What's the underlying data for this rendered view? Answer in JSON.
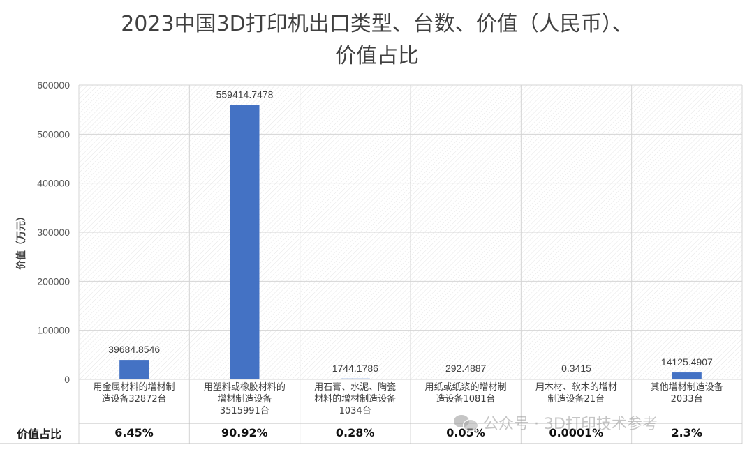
{
  "chart_data": {
    "type": "bar",
    "title": "2023中国3D打印机出口类型、台数、价值（人民币）、价值占比",
    "title_lines": [
      "2023中国3D打印机出口类型、台数、价值（人民币）、",
      "价值占比"
    ],
    "ylabel": "价值（万元）",
    "ylim": [
      0,
      600000
    ],
    "yticks": [
      "0",
      "100000",
      "200000",
      "300000",
      "400000",
      "500000",
      "600000"
    ],
    "grid": true,
    "bar_color": "#4472C4",
    "categories": [
      [
        "用金属材料的增材制",
        "造设备32872台"
      ],
      [
        "用塑料或橡胶材料的",
        "增材制造设备",
        "3515991台"
      ],
      [
        "用石膏、水泥、陶瓷",
        "材料的增材制造设备",
        "1034台"
      ],
      [
        "用纸或纸浆的增材制",
        "造设备1081台"
      ],
      [
        "用木材、软木的增材",
        "制造设备21台"
      ],
      [
        "其他增材制造设备",
        "2033台"
      ]
    ],
    "values": [
      39684.8546,
      559414.7478,
      1744.1786,
      292.4887,
      0.3415,
      14125.4907
    ],
    "data_labels": [
      "39684.8546",
      "559414.7478",
      "1744.1786",
      "292.4887",
      "0.3415",
      "14125.4907"
    ],
    "share_row_label": "价值占比",
    "shares": [
      "6.45%",
      "90.92%",
      "0.28%",
      "0.05%",
      "0.0001%",
      "2.3%"
    ]
  },
  "watermark": "公众号 · 3D打印技术参考"
}
